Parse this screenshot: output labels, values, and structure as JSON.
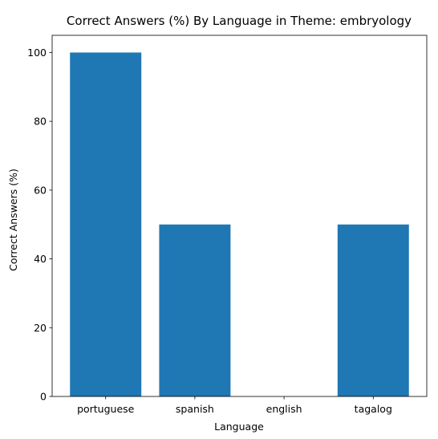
{
  "chart_data": {
    "type": "bar",
    "title": "Correct Answers (%) By Language in Theme: embryology",
    "xlabel": "Language",
    "ylabel": "Correct Answers (%)",
    "categories": [
      "portuguese",
      "spanish",
      "english",
      "tagalog"
    ],
    "values": [
      100,
      50,
      0,
      50
    ],
    "ylim": [
      0,
      105
    ],
    "yticks": [
      0,
      20,
      40,
      60,
      80,
      100
    ],
    "grid": false,
    "legend": "none",
    "bar_color": "#1f77b4"
  }
}
